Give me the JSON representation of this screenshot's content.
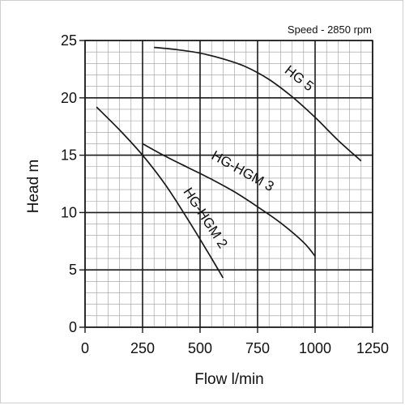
{
  "chart_data": {
    "type": "line",
    "title": "",
    "annotation": "Speed - 2850 rpm",
    "xlabel": "Flow l/min",
    "ylabel": "Head m",
    "xlim": [
      0,
      1250
    ],
    "ylim": [
      0,
      25
    ],
    "x_ticks": [
      0,
      250,
      500,
      750,
      1000,
      1250
    ],
    "y_ticks": [
      0,
      5,
      10,
      15,
      20,
      25
    ],
    "x_tick_labels": [
      "0",
      "250",
      "500",
      "750",
      "1000",
      "1250"
    ],
    "y_tick_labels": [
      "0",
      "5",
      "10",
      "15",
      "20",
      "25"
    ],
    "grid": true,
    "minor_grid_divisions": 5,
    "series": [
      {
        "name": "HG 5",
        "x": [
          300,
          400,
          500,
          600,
          700,
          800,
          900,
          1000,
          1100,
          1200
        ],
        "y": [
          24.4,
          24.2,
          23.9,
          23.4,
          22.7,
          21.6,
          20.1,
          18.3,
          16.3,
          14.5
        ]
      },
      {
        "name": "HG-HGM 3",
        "x": [
          250,
          350,
          450,
          550,
          650,
          750,
          850,
          950,
          1000
        ],
        "y": [
          16.0,
          14.9,
          13.9,
          12.9,
          11.8,
          10.5,
          9.1,
          7.4,
          6.2
        ]
      },
      {
        "name": "HG-HGM 2",
        "x": [
          50,
          150,
          250,
          350,
          450,
          550,
          600
        ],
        "y": [
          19.2,
          17.2,
          15.0,
          12.4,
          9.3,
          6.0,
          4.3
        ]
      }
    ]
  }
}
